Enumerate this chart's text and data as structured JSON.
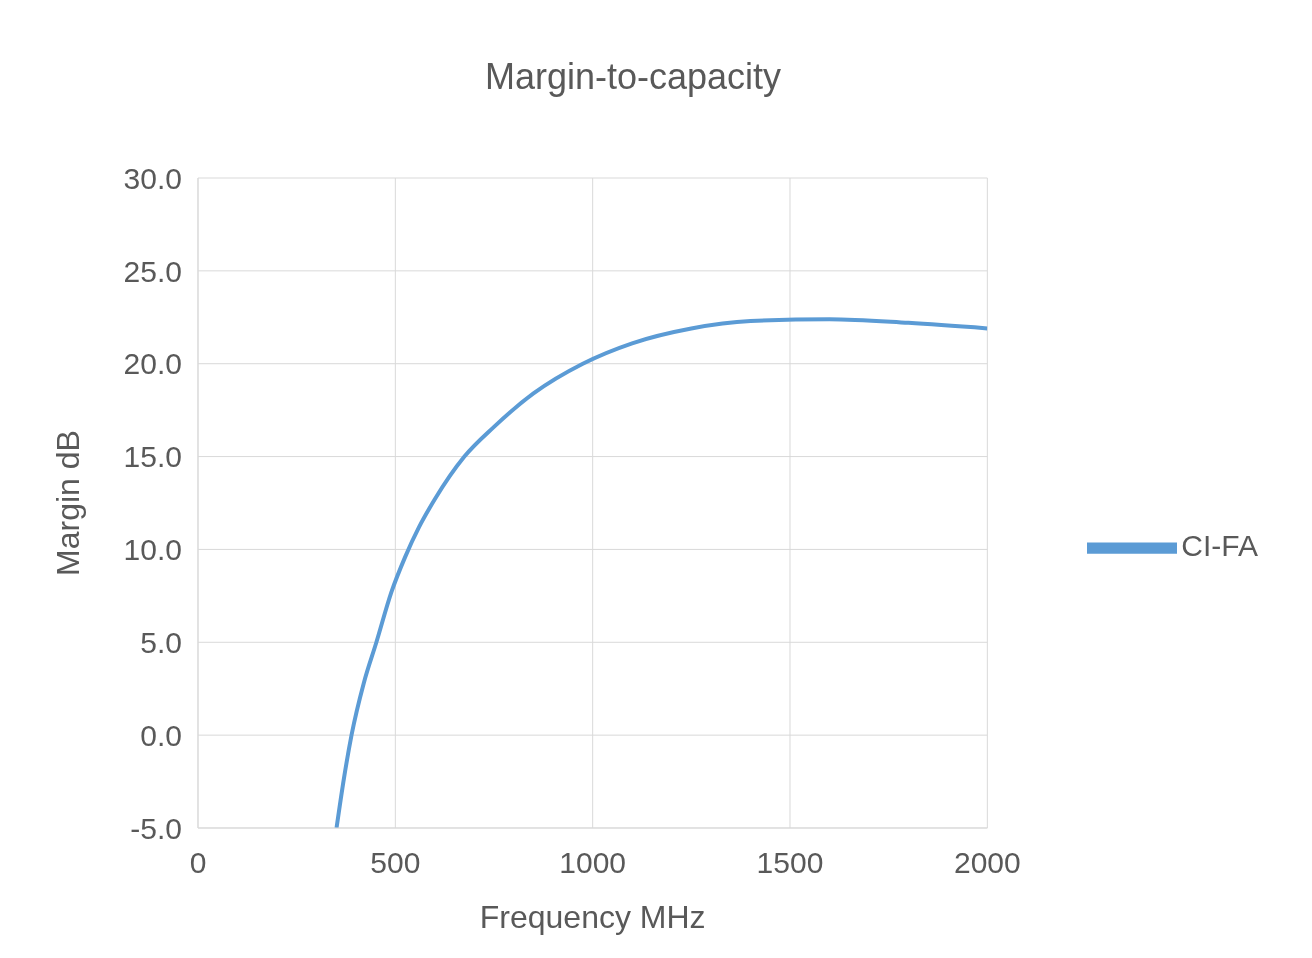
{
  "chart_data": {
    "type": "line",
    "title": "Margin-to-capacity",
    "xlabel": "Frequency MHz",
    "ylabel": "Margin dB",
    "x": [
      351,
      370,
      389,
      420,
      452,
      490,
      525,
      560,
      600,
      675,
      750,
      850,
      975,
      1100,
      1250,
      1400,
      1600,
      1800,
      2000
    ],
    "series": [
      {
        "name": "CI-FA",
        "color": "#5b9bd5",
        "values": [
          -5,
          -2.3,
          0,
          2.8,
          5,
          7.7,
          9.6,
          11.2,
          12.7,
          15,
          16.6,
          18.4,
          20,
          21.1,
          21.9,
          22.3,
          22.4,
          22.2,
          21.9
        ]
      }
    ],
    "xlim": [
      0,
      2000
    ],
    "xticks": [
      0,
      500,
      1000,
      1500,
      2000
    ],
    "ylim": [
      -5,
      30
    ],
    "yticks": [
      {
        "value": -5,
        "label": "-5.0"
      },
      {
        "value": 0,
        "label": "0.0"
      },
      {
        "value": 5,
        "label": "5.0"
      },
      {
        "value": 10,
        "label": "10.0"
      },
      {
        "value": 15,
        "label": "15.0"
      },
      {
        "value": 20,
        "label": "20.0"
      },
      {
        "value": 25,
        "label": "25.0"
      },
      {
        "value": 30,
        "label": "30.0"
      }
    ],
    "grid": true,
    "legend": "right",
    "marker": "none",
    "line_style": "solid"
  }
}
